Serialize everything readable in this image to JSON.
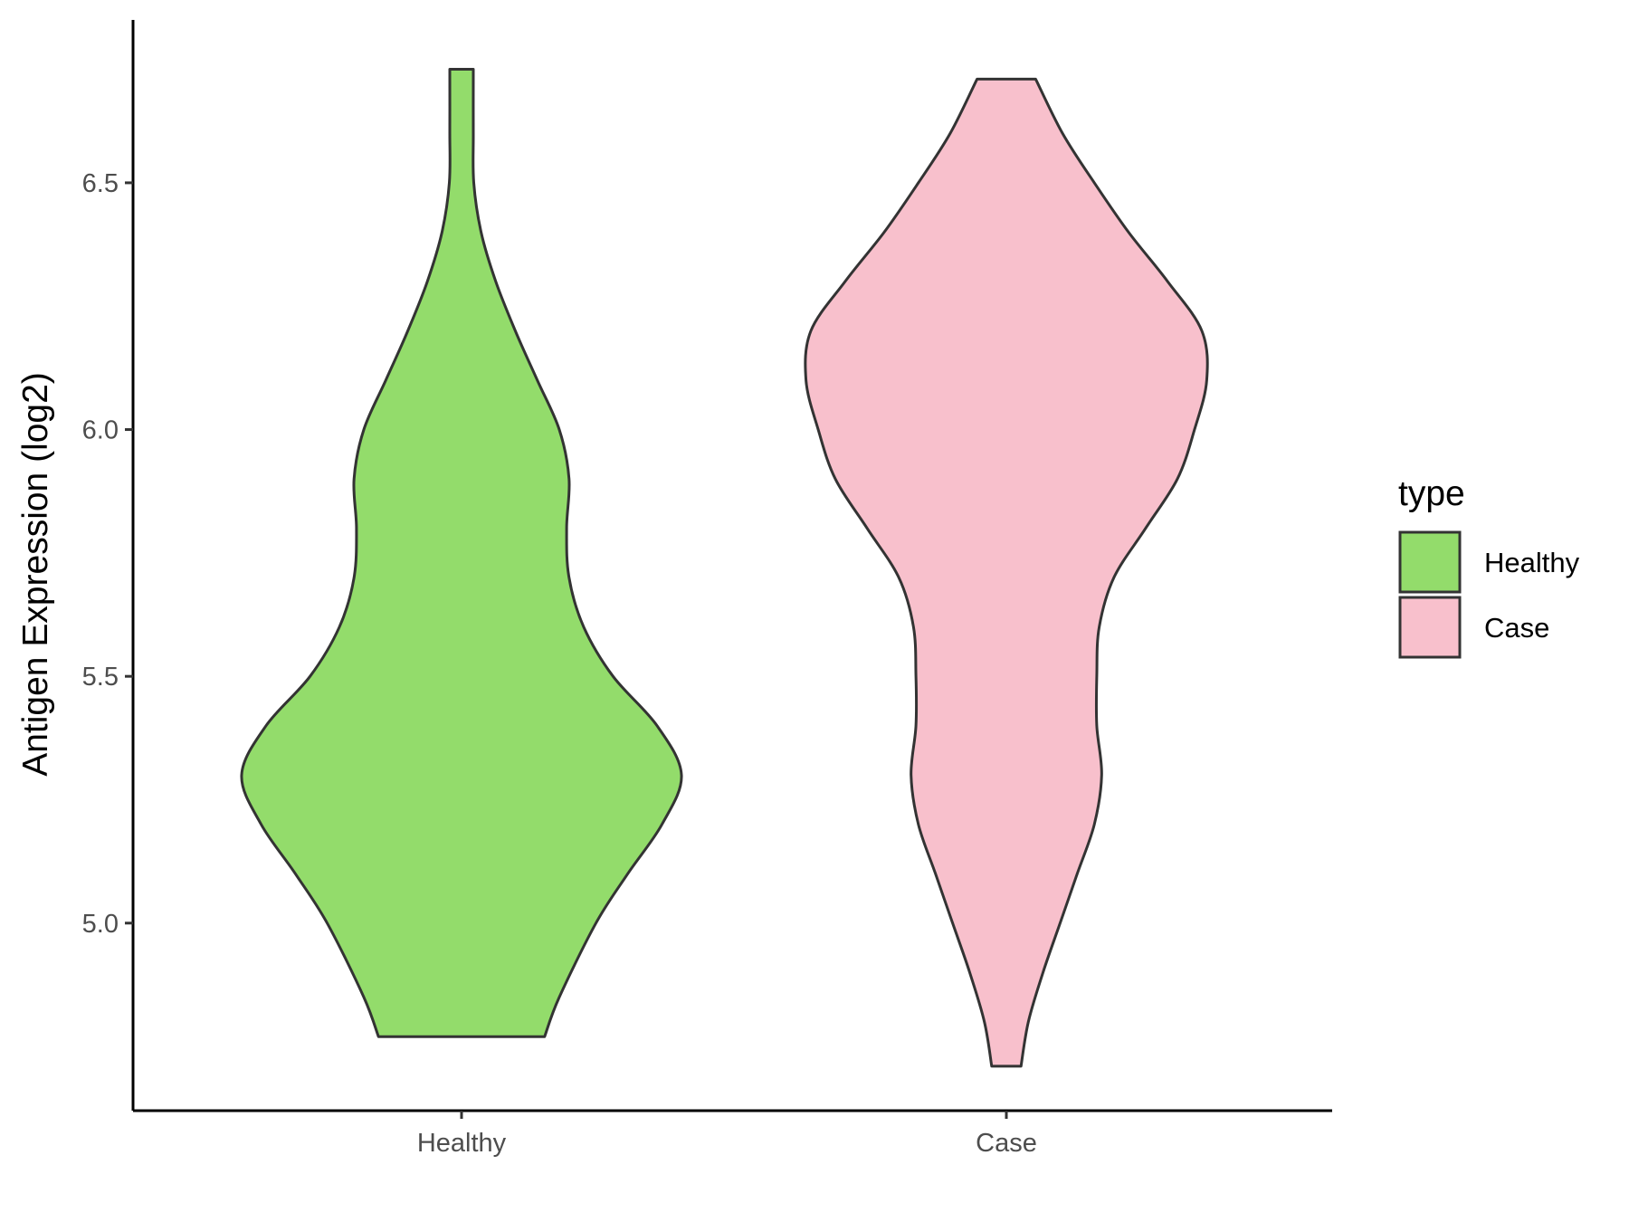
{
  "chart_data": {
    "type": "violin",
    "title": "",
    "xlabel": "",
    "ylabel": "Antigen Expression (log2)",
    "ylim": [
      4.62,
      6.83
    ],
    "yticks": [
      5.0,
      5.5,
      6.0,
      6.5
    ],
    "ytick_labels": [
      "5.0",
      "5.5",
      "6.0",
      "6.5"
    ],
    "categories": [
      "Healthy",
      "Case"
    ],
    "grid": false,
    "legend": {
      "title": "type",
      "position": "right",
      "entries": [
        {
          "label": "Healthy",
          "color": "#93dc6b"
        },
        {
          "label": "Case",
          "color": "#f8c0cc"
        }
      ]
    },
    "series": [
      {
        "name": "Healthy",
        "color": "#93dc6b",
        "min": 4.77,
        "max": 6.73,
        "density": [
          [
            4.77,
            0.34
          ],
          [
            4.85,
            0.4
          ],
          [
            5.0,
            0.55
          ],
          [
            5.1,
            0.68
          ],
          [
            5.2,
            0.82
          ],
          [
            5.3,
            0.9
          ],
          [
            5.4,
            0.8
          ],
          [
            5.5,
            0.62
          ],
          [
            5.6,
            0.5
          ],
          [
            5.7,
            0.44
          ],
          [
            5.8,
            0.43
          ],
          [
            5.9,
            0.44
          ],
          [
            6.0,
            0.4
          ],
          [
            6.1,
            0.31
          ],
          [
            6.2,
            0.22
          ],
          [
            6.3,
            0.14
          ],
          [
            6.4,
            0.08
          ],
          [
            6.5,
            0.05
          ],
          [
            6.6,
            0.048
          ],
          [
            6.73,
            0.048
          ]
        ]
      },
      {
        "name": "Case",
        "color": "#f8c0cc",
        "min": 4.71,
        "max": 6.71,
        "density": [
          [
            4.71,
            0.06
          ],
          [
            4.8,
            0.09
          ],
          [
            4.9,
            0.15
          ],
          [
            5.0,
            0.22
          ],
          [
            5.1,
            0.29
          ],
          [
            5.2,
            0.36
          ],
          [
            5.3,
            0.39
          ],
          [
            5.4,
            0.37
          ],
          [
            5.5,
            0.37
          ],
          [
            5.6,
            0.38
          ],
          [
            5.7,
            0.44
          ],
          [
            5.8,
            0.57
          ],
          [
            5.9,
            0.7
          ],
          [
            6.0,
            0.77
          ],
          [
            6.1,
            0.82
          ],
          [
            6.2,
            0.8
          ],
          [
            6.3,
            0.66
          ],
          [
            6.4,
            0.5
          ],
          [
            6.5,
            0.36
          ],
          [
            6.6,
            0.23
          ],
          [
            6.71,
            0.12
          ]
        ]
      }
    ]
  }
}
